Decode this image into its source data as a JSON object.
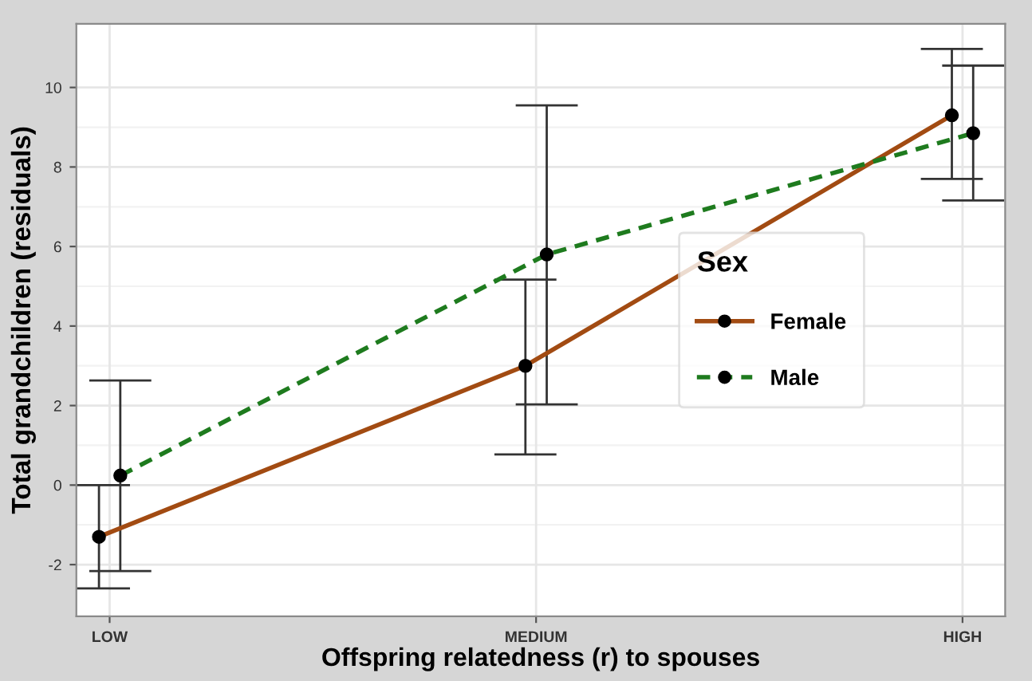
{
  "chart_data": {
    "type": "line",
    "xlabel": "Offspring relatedness (r) to spouses",
    "ylabel": "Total grandchildren (residuals)",
    "legend_title": "Sex",
    "categories": [
      "LOW",
      "MEDIUM",
      "HIGH"
    ],
    "series": [
      {
        "name": "Female",
        "color": "#a24b12",
        "line_style": "solid",
        "values": [
          -1.3,
          3.0,
          9.3
        ],
        "errors": [
          [
            -2.6,
            0.0
          ],
          [
            0.77,
            5.17
          ],
          [
            7.7,
            10.97
          ]
        ]
      },
      {
        "name": "Male",
        "color": "#1e7b1e",
        "line_style": "dashed",
        "values": [
          0.24,
          5.8,
          8.85
        ],
        "errors": [
          [
            -2.16,
            2.63
          ],
          [
            2.03,
            9.55
          ],
          [
            7.16,
            10.55
          ]
        ]
      }
    ],
    "ylim": [
      -3.3,
      11.6
    ],
    "yticks": [
      -2,
      0,
      2,
      4,
      6,
      8,
      10
    ],
    "marker": "circle",
    "grid": true,
    "legend": "right"
  }
}
